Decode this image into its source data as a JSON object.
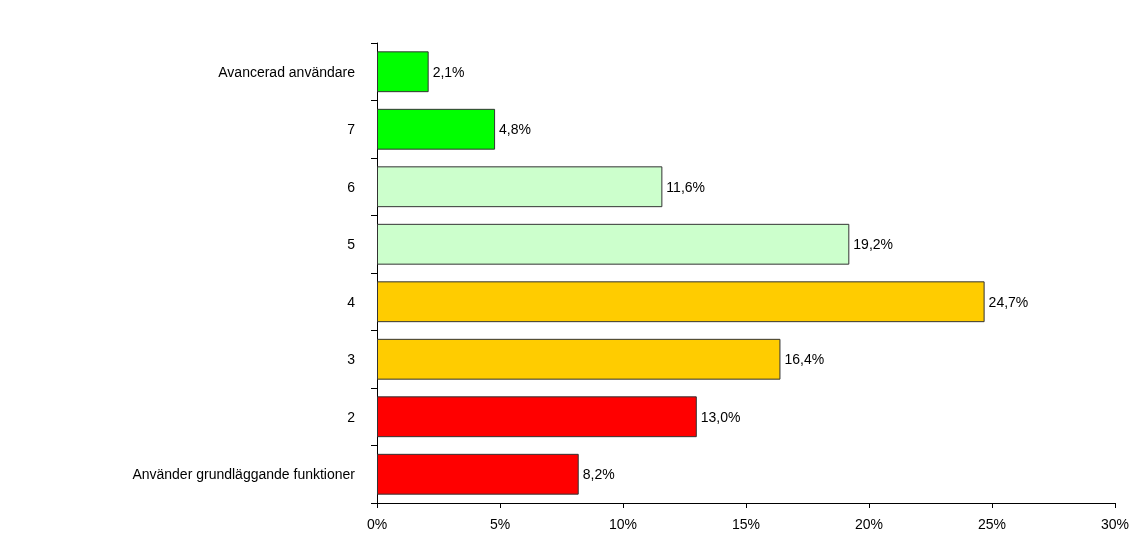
{
  "chart_data": {
    "type": "bar",
    "orientation": "horizontal",
    "categories": [
      "Avancerad användare",
      "7",
      "6",
      "5",
      "4",
      "3",
      "2",
      "Använder grundläggande funktioner"
    ],
    "values": [
      2.1,
      4.8,
      11.6,
      19.2,
      24.7,
      16.4,
      13.0,
      8.2
    ],
    "colors": [
      "#00ff00",
      "#00ff00",
      "#ccffcc",
      "#ccffcc",
      "#ffcc00",
      "#ffcc00",
      "#ff0000",
      "#ff0000"
    ],
    "value_labels": [
      "2,1%",
      "4,8%",
      "11,6%",
      "19,2%",
      "24,7%",
      "16,4%",
      "13,0%",
      "8,2%"
    ],
    "xlim": [
      0,
      30
    ],
    "xticks": [
      {
        "value": 0,
        "label": "0%"
      },
      {
        "value": 5,
        "label": "5%"
      },
      {
        "value": 10,
        "label": "10%"
      },
      {
        "value": 15,
        "label": "15%"
      },
      {
        "value": 20,
        "label": "20%"
      },
      {
        "value": 25,
        "label": "25%"
      },
      {
        "value": 30,
        "label": "30%"
      }
    ],
    "grid": false
  }
}
